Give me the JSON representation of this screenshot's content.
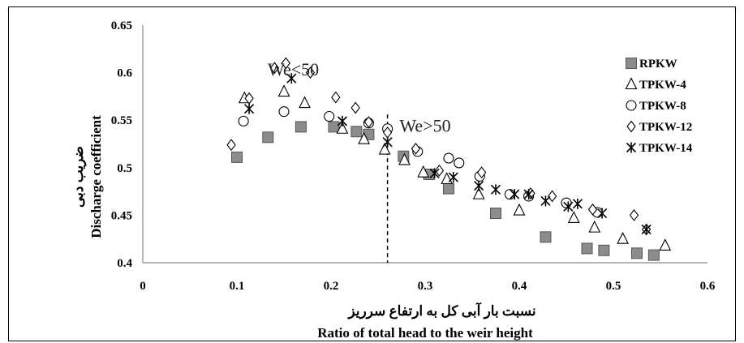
{
  "chart_data": {
    "type": "scatter",
    "xlabel_fa": "نسبت بار آبی کل به ارتفاع سرریز",
    "xlabel_en": "Ratio of total head to the weir height",
    "ylabel_fa": "ضریب دبی",
    "ylabel_en": "Discharge coefficient",
    "xlim": [
      0,
      0.6
    ],
    "ylim": [
      0.4,
      0.65
    ],
    "x_ticks": [
      "0",
      "0.1",
      "0.2",
      "0.3",
      "0.4",
      "0.5",
      "0.6"
    ],
    "y_ticks": [
      "0.4",
      "0.45",
      "0.5",
      "0.55",
      "0.6",
      "0.65"
    ],
    "grid": false,
    "legend_position": "right",
    "vline_x": 0.26,
    "annotations": [
      {
        "text": "We<50",
        "x": 0.16,
        "y": 0.597
      },
      {
        "text": "We>50",
        "x": 0.3,
        "y": 0.538
      }
    ],
    "series": [
      {
        "name": "RPKW",
        "marker": "square",
        "points": [
          [
            0.1,
            0.511
          ],
          [
            0.133,
            0.532
          ],
          [
            0.168,
            0.543
          ],
          [
            0.203,
            0.543
          ],
          [
            0.227,
            0.538
          ],
          [
            0.24,
            0.535
          ],
          [
            0.277,
            0.512
          ],
          [
            0.304,
            0.493
          ],
          [
            0.325,
            0.478
          ],
          [
            0.375,
            0.452
          ],
          [
            0.428,
            0.427
          ],
          [
            0.472,
            0.415
          ],
          [
            0.49,
            0.413
          ],
          [
            0.525,
            0.41
          ],
          [
            0.543,
            0.408
          ]
        ]
      },
      {
        "name": "TPKW-4",
        "marker": "triangle",
        "points": [
          [
            0.108,
            0.573
          ],
          [
            0.15,
            0.58
          ],
          [
            0.172,
            0.568
          ],
          [
            0.212,
            0.541
          ],
          [
            0.235,
            0.53
          ],
          [
            0.257,
            0.519
          ],
          [
            0.278,
            0.508
          ],
          [
            0.298,
            0.495
          ],
          [
            0.323,
            0.488
          ],
          [
            0.357,
            0.472
          ],
          [
            0.4,
            0.455
          ],
          [
            0.458,
            0.447
          ],
          [
            0.48,
            0.437
          ],
          [
            0.51,
            0.425
          ],
          [
            0.555,
            0.418
          ]
        ]
      },
      {
        "name": "TPKW-8",
        "marker": "circle",
        "points": [
          [
            0.107,
            0.549
          ],
          [
            0.15,
            0.559
          ],
          [
            0.198,
            0.554
          ],
          [
            0.24,
            0.547
          ],
          [
            0.26,
            0.541
          ],
          [
            0.292,
            0.517
          ],
          [
            0.325,
            0.51
          ],
          [
            0.336,
            0.505
          ],
          [
            0.358,
            0.491
          ],
          [
            0.39,
            0.472
          ],
          [
            0.41,
            0.47
          ],
          [
            0.45,
            0.463
          ],
          [
            0.483,
            0.453
          ]
        ]
      },
      {
        "name": "TPKW-12",
        "marker": "diamond",
        "points": [
          [
            0.094,
            0.524
          ],
          [
            0.113,
            0.573
          ],
          [
            0.14,
            0.605
          ],
          [
            0.152,
            0.61
          ],
          [
            0.178,
            0.6
          ],
          [
            0.205,
            0.574
          ],
          [
            0.226,
            0.563
          ],
          [
            0.24,
            0.548
          ],
          [
            0.26,
            0.537
          ],
          [
            0.29,
            0.52
          ],
          [
            0.315,
            0.497
          ],
          [
            0.36,
            0.495
          ],
          [
            0.412,
            0.473
          ],
          [
            0.435,
            0.47
          ],
          [
            0.478,
            0.456
          ],
          [
            0.522,
            0.45
          ],
          [
            0.535,
            0.435
          ]
        ]
      },
      {
        "name": "TPKW-14",
        "marker": "star",
        "points": [
          [
            0.113,
            0.562
          ],
          [
            0.158,
            0.594
          ],
          [
            0.212,
            0.549
          ],
          [
            0.26,
            0.527
          ],
          [
            0.31,
            0.494
          ],
          [
            0.33,
            0.49
          ],
          [
            0.357,
            0.481
          ],
          [
            0.375,
            0.477
          ],
          [
            0.395,
            0.472
          ],
          [
            0.41,
            0.472
          ],
          [
            0.428,
            0.465
          ],
          [
            0.452,
            0.459
          ],
          [
            0.462,
            0.462
          ],
          [
            0.488,
            0.452
          ],
          [
            0.535,
            0.435
          ]
        ]
      }
    ]
  }
}
